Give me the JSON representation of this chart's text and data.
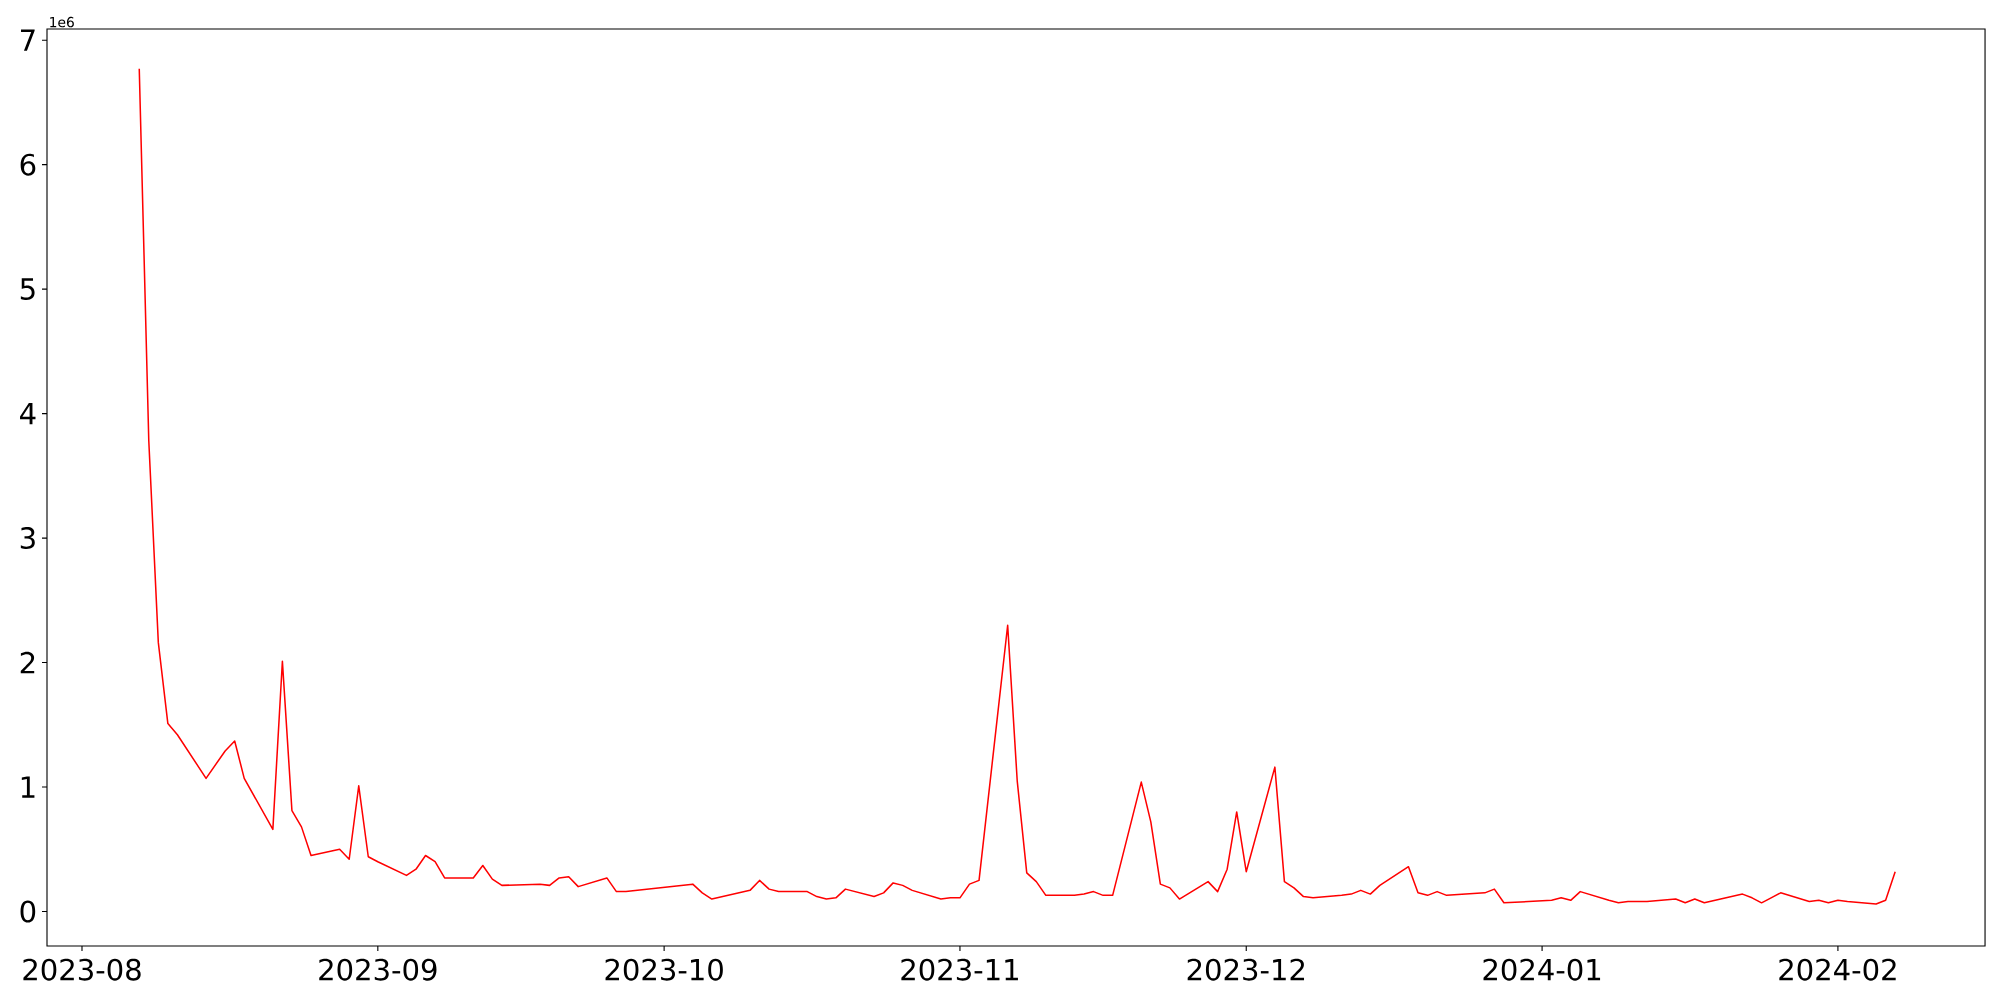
{
  "chart_data": {
    "type": "line",
    "annotations": [
      "1e6"
    ],
    "xlim": [
      "2023-07-28T08:00",
      "2024-02-16T10:00"
    ],
    "xticks": [
      "2023-08",
      "2023-09",
      "2023-10",
      "2023-11",
      "2023-12",
      "2024-01",
      "2024-02"
    ],
    "ylim": [
      -0.277,
      7.09
    ],
    "yticks": [
      0,
      1,
      2,
      3,
      4,
      5,
      6,
      7
    ],
    "series": [
      {
        "color": "#ff0000",
        "x": [
          "2023-08-07",
          "2023-08-08",
          "2023-08-09",
          "2023-08-10",
          "2023-08-11",
          "2023-08-14",
          "2023-08-16",
          "2023-08-17",
          "2023-08-18",
          "2023-08-21",
          "2023-08-22",
          "2023-08-23",
          "2023-08-24",
          "2023-08-25",
          "2023-08-28",
          "2023-08-29",
          "2023-08-30",
          "2023-08-31",
          "2023-09-01",
          "2023-09-04",
          "2023-09-05",
          "2023-09-06",
          "2023-09-07",
          "2023-09-08",
          "2023-09-11",
          "2023-09-12",
          "2023-09-13",
          "2023-09-14",
          "2023-09-18",
          "2023-09-19",
          "2023-09-20",
          "2023-09-21",
          "2023-09-22",
          "2023-09-25",
          "2023-09-26",
          "2023-09-27",
          "2023-10-04",
          "2023-10-05",
          "2023-10-06",
          "2023-10-10",
          "2023-10-11",
          "2023-10-12",
          "2023-10-13",
          "2023-10-16",
          "2023-10-17",
          "2023-10-18",
          "2023-10-19",
          "2023-10-20",
          "2023-10-23",
          "2023-10-24",
          "2023-10-25",
          "2023-10-26",
          "2023-10-27",
          "2023-10-30",
          "2023-10-31",
          "2023-11-01",
          "2023-11-02",
          "2023-11-03",
          "2023-11-06",
          "2023-11-07",
          "2023-11-08",
          "2023-11-09",
          "2023-11-10",
          "2023-11-13",
          "2023-11-14",
          "2023-11-15",
          "2023-11-16",
          "2023-11-17",
          "2023-11-20",
          "2023-11-21",
          "2023-11-22",
          "2023-11-23",
          "2023-11-24",
          "2023-11-27",
          "2023-11-28",
          "2023-11-29",
          "2023-11-30",
          "2023-12-01",
          "2023-12-04",
          "2023-12-05",
          "2023-12-06",
          "2023-12-07",
          "2023-12-08",
          "2023-12-11",
          "2023-12-12",
          "2023-12-13",
          "2023-12-14",
          "2023-12-15",
          "2023-12-18",
          "2023-12-19",
          "2023-12-20",
          "2023-12-21",
          "2023-12-22",
          "2023-12-26",
          "2023-12-27",
          "2023-12-28",
          "2024-01-02",
          "2024-01-03",
          "2024-01-04",
          "2024-01-05",
          "2024-01-08",
          "2024-01-09",
          "2024-01-10",
          "2024-01-12",
          "2024-01-15",
          "2024-01-16",
          "2024-01-17",
          "2024-01-18",
          "2024-01-22",
          "2024-01-23",
          "2024-01-24",
          "2024-01-25",
          "2024-01-26",
          "2024-01-29",
          "2024-01-30",
          "2024-01-31",
          "2024-02-01",
          "2024-02-02",
          "2024-02-05",
          "2024-02-06",
          "2024-02-07"
        ],
        "values": [
          6.77,
          3.78,
          2.16,
          1.51,
          1.42,
          1.07,
          1.29,
          1.37,
          1.07,
          0.66,
          2.01,
          0.81,
          0.68,
          0.45,
          0.5,
          0.42,
          1.01,
          0.44,
          0.4,
          0.29,
          0.34,
          0.45,
          0.4,
          0.27,
          0.27,
          0.37,
          0.26,
          0.21,
          0.22,
          0.21,
          0.27,
          0.28,
          0.2,
          0.27,
          0.16,
          0.16,
          0.22,
          0.15,
          0.1,
          0.17,
          0.25,
          0.18,
          0.16,
          0.16,
          0.12,
          0.1,
          0.11,
          0.18,
          0.12,
          0.15,
          0.23,
          0.21,
          0.17,
          0.1,
          0.11,
          0.11,
          0.22,
          0.25,
          2.3,
          1.05,
          0.31,
          0.24,
          0.13,
          0.13,
          0.14,
          0.16,
          0.13,
          0.13,
          1.04,
          0.72,
          0.22,
          0.19,
          0.1,
          0.24,
          0.16,
          0.34,
          0.8,
          0.32,
          1.16,
          0.24,
          0.19,
          0.12,
          0.11,
          0.13,
          0.14,
          0.17,
          0.14,
          0.21,
          0.36,
          0.15,
          0.13,
          0.16,
          0.13,
          0.15,
          0.18,
          0.07,
          0.09,
          0.11,
          0.09,
          0.16,
          0.09,
          0.07,
          0.08,
          0.08,
          0.1,
          0.07,
          0.1,
          0.07,
          0.14,
          0.11,
          0.07,
          0.11,
          0.15,
          0.08,
          0.09,
          0.07,
          0.09,
          0.08,
          0.06,
          0.09,
          0.32
        ]
      }
    ]
  }
}
